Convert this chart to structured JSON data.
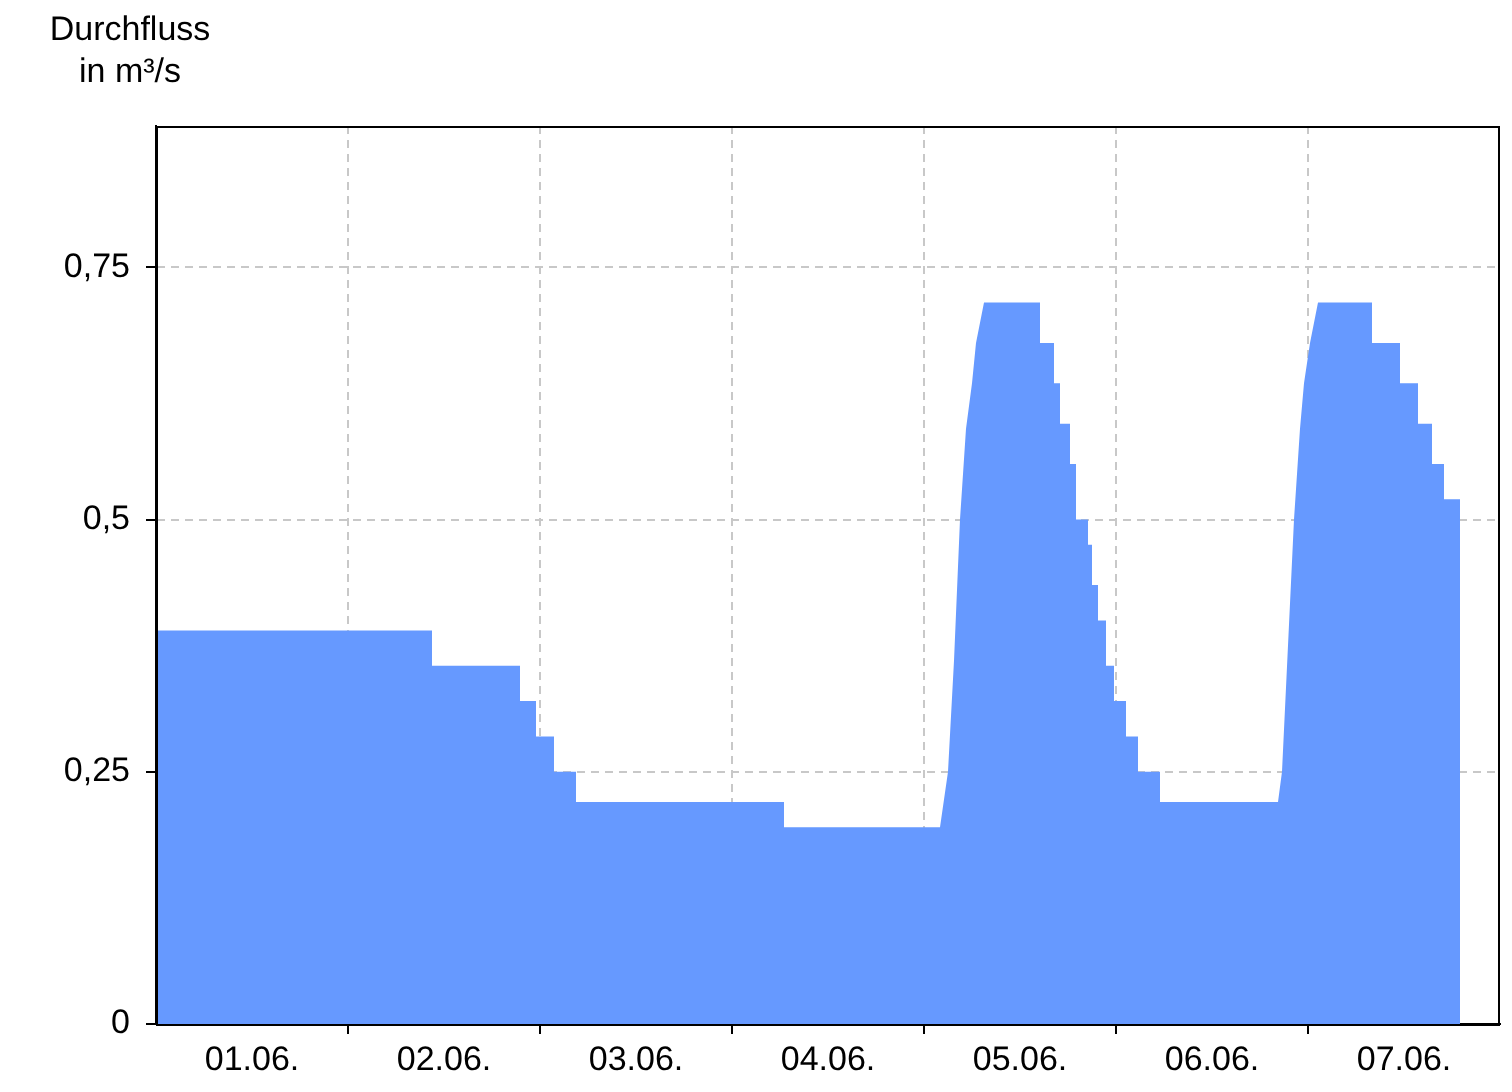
{
  "chart_data": {
    "type": "area",
    "ylabel": "Durchfluss in m³/s",
    "x": [
      "--06-01T00:00",
      "--06-02T10:30",
      "--06-02T10:30",
      "--06-02T21:30",
      "--06-02T21:30",
      "--06-02T23:30",
      "--06-02T23:30",
      "--06-03T01:45",
      "--06-03T01:45",
      "--06-03T04:30",
      "--06-03T04:30",
      "--06-04T06:30",
      "--06-04T06:30",
      "--06-05T02:00",
      "--06-05T03:00",
      "--06-05T03:45",
      "--06-05T04:30",
      "--06-05T05:15",
      "--06-05T06:00",
      "--06-05T06:30",
      "--06-05T07:30",
      "--06-05T14:30",
      "--06-05T14:30",
      "--06-05T16:15",
      "--06-05T16:15",
      "--06-05T17:00",
      "--06-05T17:00",
      "--06-05T18:15",
      "--06-05T18:15",
      "--06-05T19:00",
      "--06-05T19:00",
      "--06-05T20:30",
      "--06-05T20:30",
      "--06-05T21:00",
      "--06-05T21:00",
      "--06-05T21:45",
      "--06-05T21:45",
      "--06-05T22:45",
      "--06-05T22:45",
      "--06-05T23:45",
      "--06-05T23:45",
      "--06-06T01:15",
      "--06-06T01:15",
      "--06-06T02:45",
      "--06-06T02:45",
      "--06-06T05:30",
      "--06-06T05:30",
      "--06-06T20:15",
      "--06-06T20:45",
      "--06-06T22:15",
      "--06-06T23:00",
      "--06-06T23:30",
      "--06-07T00:15",
      "--06-07T01:15",
      "--06-07T08:00",
      "--06-07T08:00",
      "--06-07T11:30",
      "--06-07T11:30",
      "--06-07T13:45",
      "--06-07T13:45",
      "--06-07T15:30",
      "--06-07T15:30",
      "--06-07T17:00",
      "--06-07T17:00",
      "--06-07T19:00"
    ],
    "series": [
      {
        "color": "#6699ff",
        "values": [
          0.39,
          0.39,
          0.355,
          0.355,
          0.32,
          0.32,
          0.285,
          0.285,
          0.25,
          0.25,
          0.22,
          0.22,
          0.195,
          0.195,
          0.25,
          0.36,
          0.5,
          0.59,
          0.635,
          0.675,
          0.715,
          0.715,
          0.675,
          0.675,
          0.635,
          0.635,
          0.595,
          0.595,
          0.555,
          0.555,
          0.5,
          0.5,
          0.475,
          0.475,
          0.435,
          0.435,
          0.4,
          0.4,
          0.355,
          0.355,
          0.32,
          0.32,
          0.285,
          0.285,
          0.25,
          0.25,
          0.22,
          0.22,
          0.25,
          0.5,
          0.59,
          0.635,
          0.675,
          0.715,
          0.715,
          0.675,
          0.675,
          0.635,
          0.635,
          0.595,
          0.595,
          0.555,
          0.555,
          0.52,
          0.52
        ]
      }
    ],
    "xlim": [
      "--06-01T00:00",
      "--06-08T00:00"
    ],
    "xticks": [
      {
        "value": "--06-01T12:00",
        "label": "01.06."
      },
      {
        "value": "--06-02T00:00",
        "label": null
      },
      {
        "value": "--06-02T12:00",
        "label": "02.06."
      },
      {
        "value": "--06-03T00:00",
        "label": null
      },
      {
        "value": "--06-03T12:00",
        "label": "03.06."
      },
      {
        "value": "--06-04T00:00",
        "label": null
      },
      {
        "value": "--06-04T12:00",
        "label": "04.06."
      },
      {
        "value": "--06-05T00:00",
        "label": null
      },
      {
        "value": "--06-05T12:00",
        "label": "05.06."
      },
      {
        "value": "--06-06T00:00",
        "label": null
      },
      {
        "value": "--06-06T12:00",
        "label": "06.06."
      },
      {
        "value": "--06-07T00:00",
        "label": null
      },
      {
        "value": "--06-07T12:00",
        "label": "07.06."
      }
    ],
    "ylim": [
      0,
      0.89
    ],
    "yticks": [
      {
        "value": 0,
        "label": "0"
      },
      {
        "value": 0.25,
        "label": "0,25"
      },
      {
        "value": 0.5,
        "label": "0,5"
      },
      {
        "value": 0.75,
        "label": "0,75"
      }
    ],
    "grid": true,
    "legend": false
  }
}
